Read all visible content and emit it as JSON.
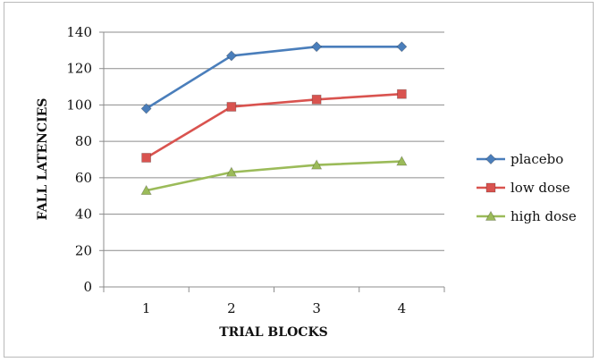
{
  "chart_data": {
    "type": "line",
    "title": "",
    "xlabel": "TRIAL BLOCKS",
    "ylabel": "FALL LATENCIES",
    "x": [
      "1",
      "2",
      "3",
      "4"
    ],
    "ylim": [
      0,
      140
    ],
    "yticks": [
      0,
      20,
      40,
      60,
      80,
      100,
      120,
      140
    ],
    "grid": true,
    "legend_position": "right",
    "series": [
      {
        "name": "placebo",
        "values": [
          98,
          127,
          132,
          132
        ],
        "color": "#4a7ebb",
        "marker": "diamond"
      },
      {
        "name": "low dose",
        "values": [
          71,
          99,
          103,
          106
        ],
        "color": "#d9534f",
        "marker": "square"
      },
      {
        "name": "high dose",
        "values": [
          53,
          63,
          67,
          69
        ],
        "color": "#9bbb59",
        "marker": "triangle"
      }
    ]
  }
}
